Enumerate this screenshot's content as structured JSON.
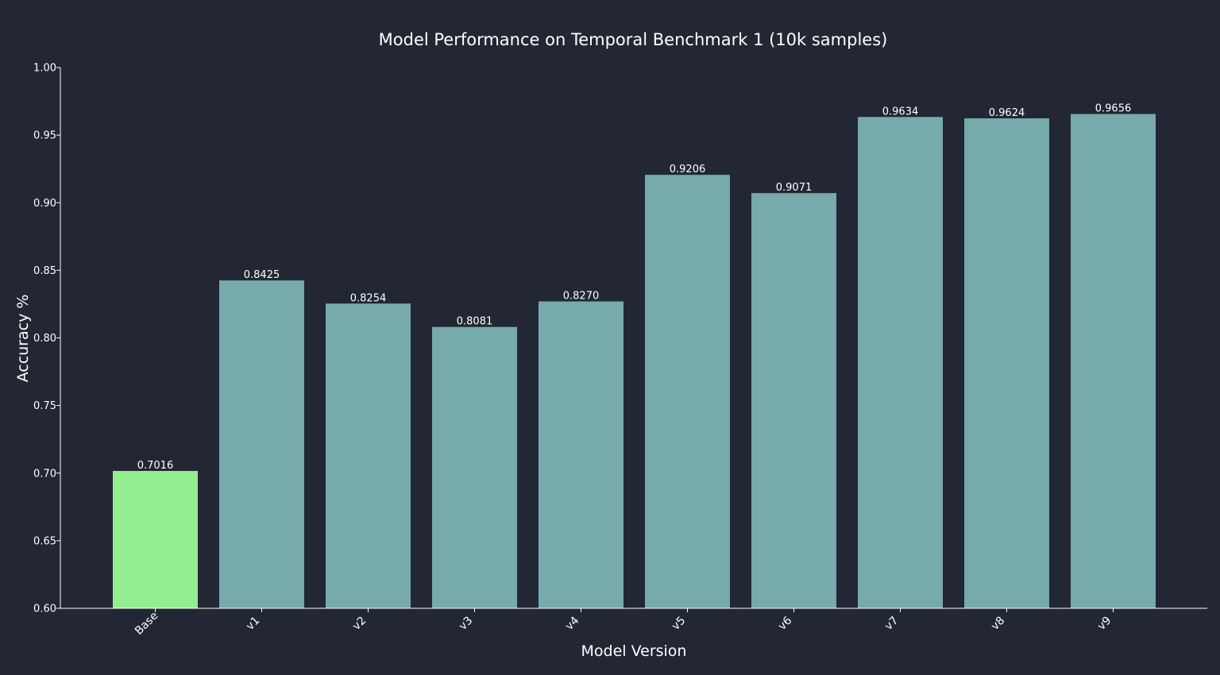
{
  "chart_data": {
    "type": "bar",
    "title": "Model Performance on Temporal Benchmark 1 (10k samples)",
    "xlabel": "Model Version",
    "ylabel": "Accuracy %",
    "categories": [
      "Base",
      "v1",
      "v2",
      "v3",
      "v4",
      "v5",
      "v6",
      "v7",
      "v8",
      "v9"
    ],
    "values": [
      0.7016,
      0.8425,
      0.8254,
      0.8081,
      0.827,
      0.9206,
      0.9071,
      0.9634,
      0.9624,
      0.9656
    ],
    "value_labels": [
      "0.7016",
      "0.8425",
      "0.8254",
      "0.8081",
      "0.8270",
      "0.9206",
      "0.9071",
      "0.9634",
      "0.9624",
      "0.9656"
    ],
    "ylim": [
      0.6,
      1.0
    ],
    "yticks": [
      "0.60",
      "0.65",
      "0.70",
      "0.75",
      "0.80",
      "0.85",
      "0.90",
      "0.95",
      "1.00"
    ],
    "grid": false,
    "colors": {
      "background": "#222733",
      "base_bar": "#93ee90",
      "bar": "#76aaac",
      "axis": "#ffffff",
      "text": "#ffffff"
    },
    "highlight_category": "Base"
  }
}
